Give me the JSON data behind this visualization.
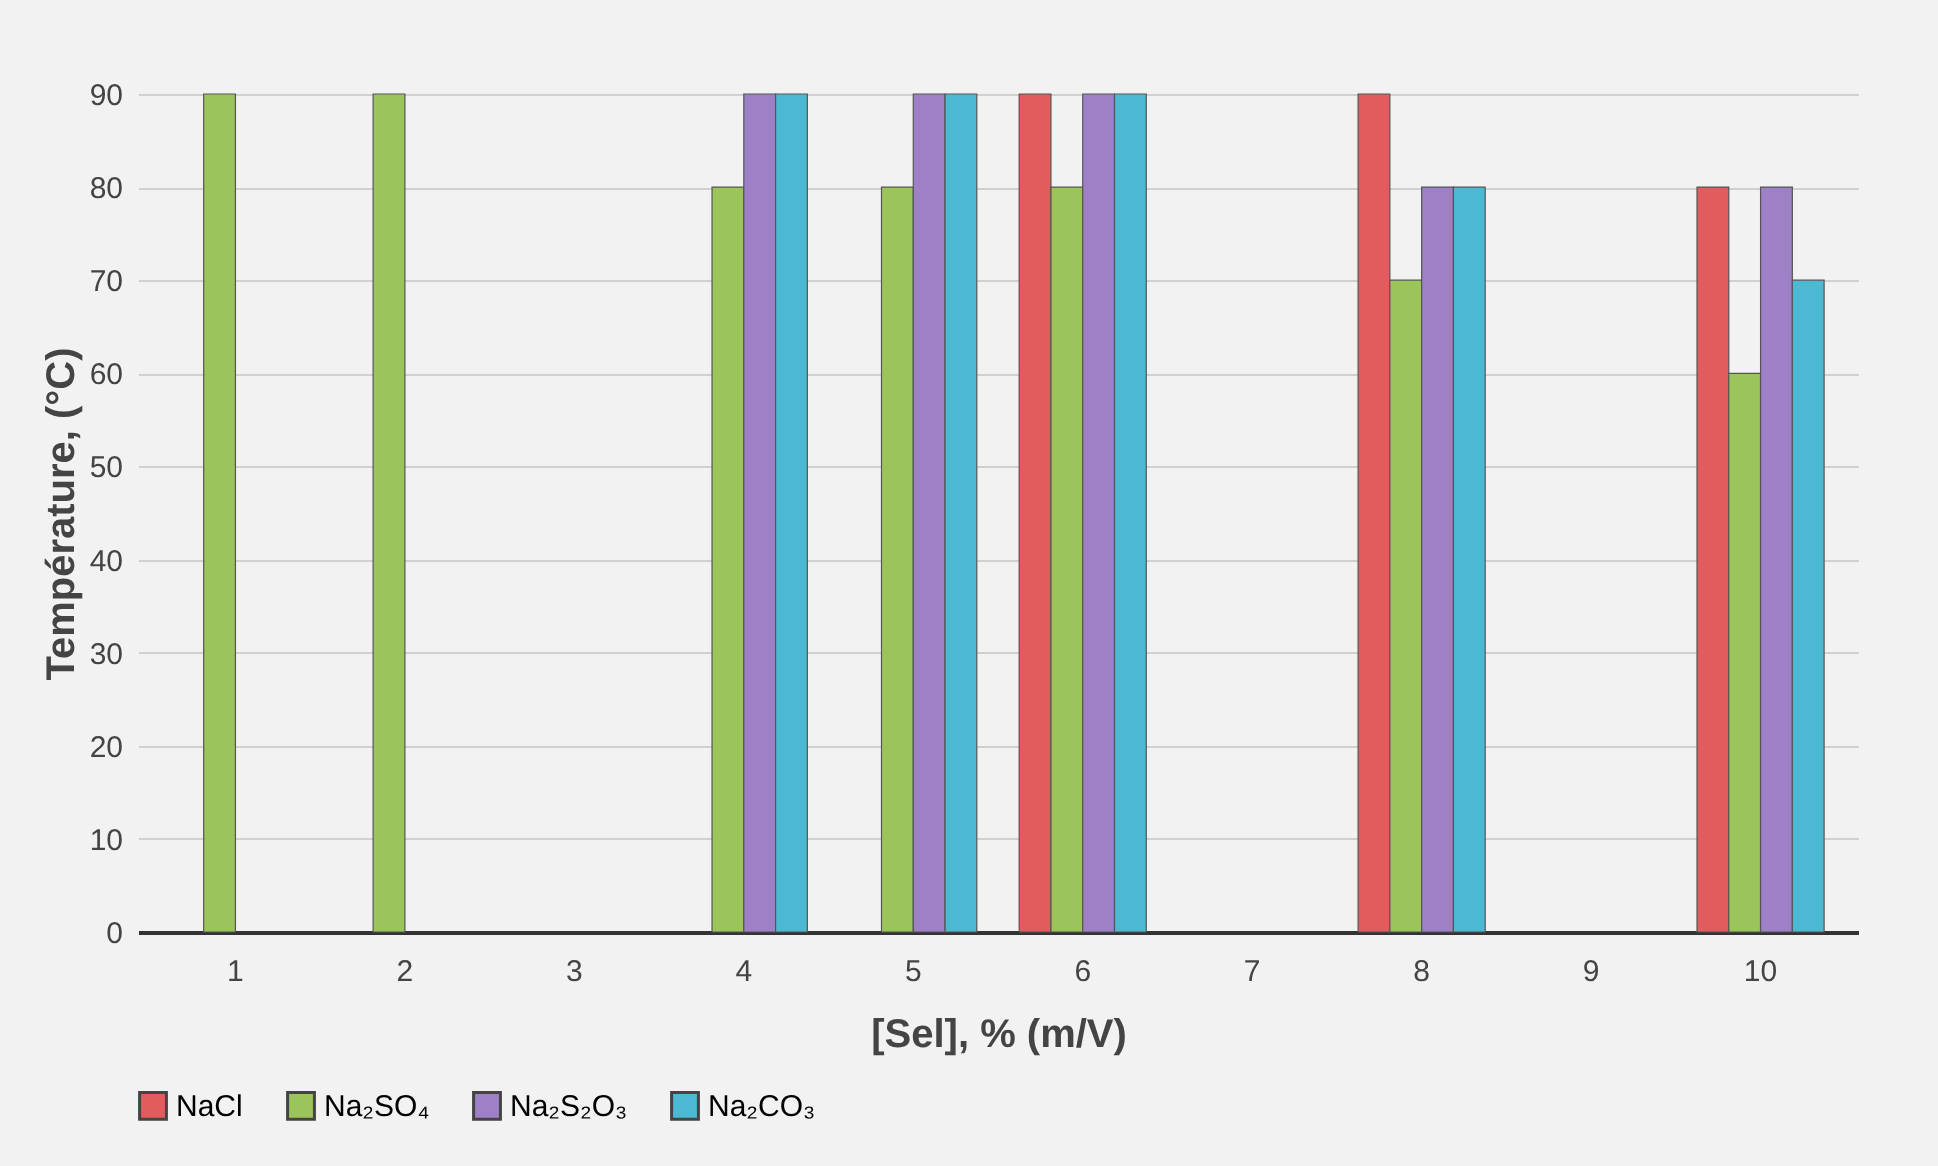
{
  "chart_data": {
    "type": "bar",
    "xlabel": "[Sel], % (m/V)",
    "ylabel": "Température, (°C)",
    "categories": [
      "1",
      "2",
      "3",
      "4",
      "5",
      "6",
      "7",
      "8",
      "9",
      "10"
    ],
    "series": [
      {
        "name": "NaCl",
        "color": "#e35b5d",
        "values": [
          null,
          null,
          null,
          null,
          null,
          90,
          null,
          90,
          null,
          80
        ]
      },
      {
        "name": "Na₂SO₄",
        "color": "#9bc55a",
        "values": [
          90,
          90,
          null,
          80,
          80,
          80,
          null,
          70,
          null,
          60
        ]
      },
      {
        "name": "Na₂S₂O₃",
        "color": "#9d80c6",
        "values": [
          null,
          null,
          null,
          90,
          90,
          90,
          null,
          80,
          null,
          80
        ]
      },
      {
        "name": "Na₂CO₃",
        "color": "#4cb9d3",
        "values": [
          null,
          null,
          null,
          90,
          90,
          90,
          null,
          80,
          null,
          70
        ]
      }
    ],
    "ylim": [
      0,
      90
    ],
    "yticks": [
      0,
      10,
      20,
      30,
      40,
      50,
      60,
      70,
      80,
      90
    ],
    "grid": "y",
    "legend": "bottom"
  }
}
